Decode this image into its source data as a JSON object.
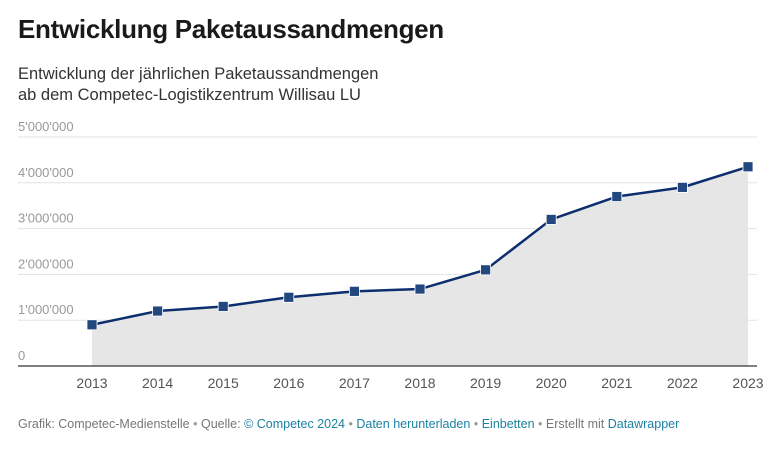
{
  "header": {
    "title": "Entwicklung Paketaussandmengen",
    "subtitle_line1": "Entwicklung der jährlichen Paketaussandmengen",
    "subtitle_line2": "ab dem Competec-Logistikzentrum Willisau LU"
  },
  "footer": {
    "credit": "Grafik: Competec-Medienstelle",
    "source_label": "Quelle:",
    "source_link": "© Competec 2024",
    "download_link": "Daten herunterladen",
    "embed_link": "Einbetten",
    "made_with": "Erstellt mit",
    "datawrapper_link": "Datawrapper",
    "separator": "•"
  },
  "chart_data": {
    "type": "area",
    "x": [
      "2013",
      "2014",
      "2015",
      "2016",
      "2017",
      "2018",
      "2019",
      "2020",
      "2021",
      "2022",
      "2023"
    ],
    "series": [
      {
        "values": [
          900000,
          1200000,
          1300000,
          1500000,
          1630000,
          1680000,
          2100000,
          3200000,
          3700000,
          3900000,
          4350000
        ]
      }
    ],
    "ylim": [
      0,
      5000000
    ],
    "yticks": [
      0,
      1000000,
      2000000,
      3000000,
      4000000,
      5000000
    ],
    "ytick_labels": [
      "0",
      "1'000'000",
      "2'000'000",
      "3'000'000",
      "4'000'000",
      "5'000'000"
    ],
    "grid": true,
    "colors": {
      "line": "#0d2f6f",
      "marker": "#22487f",
      "area": "#e6e6e6",
      "grid": "#e3e3e3",
      "axis": "#333333"
    }
  }
}
